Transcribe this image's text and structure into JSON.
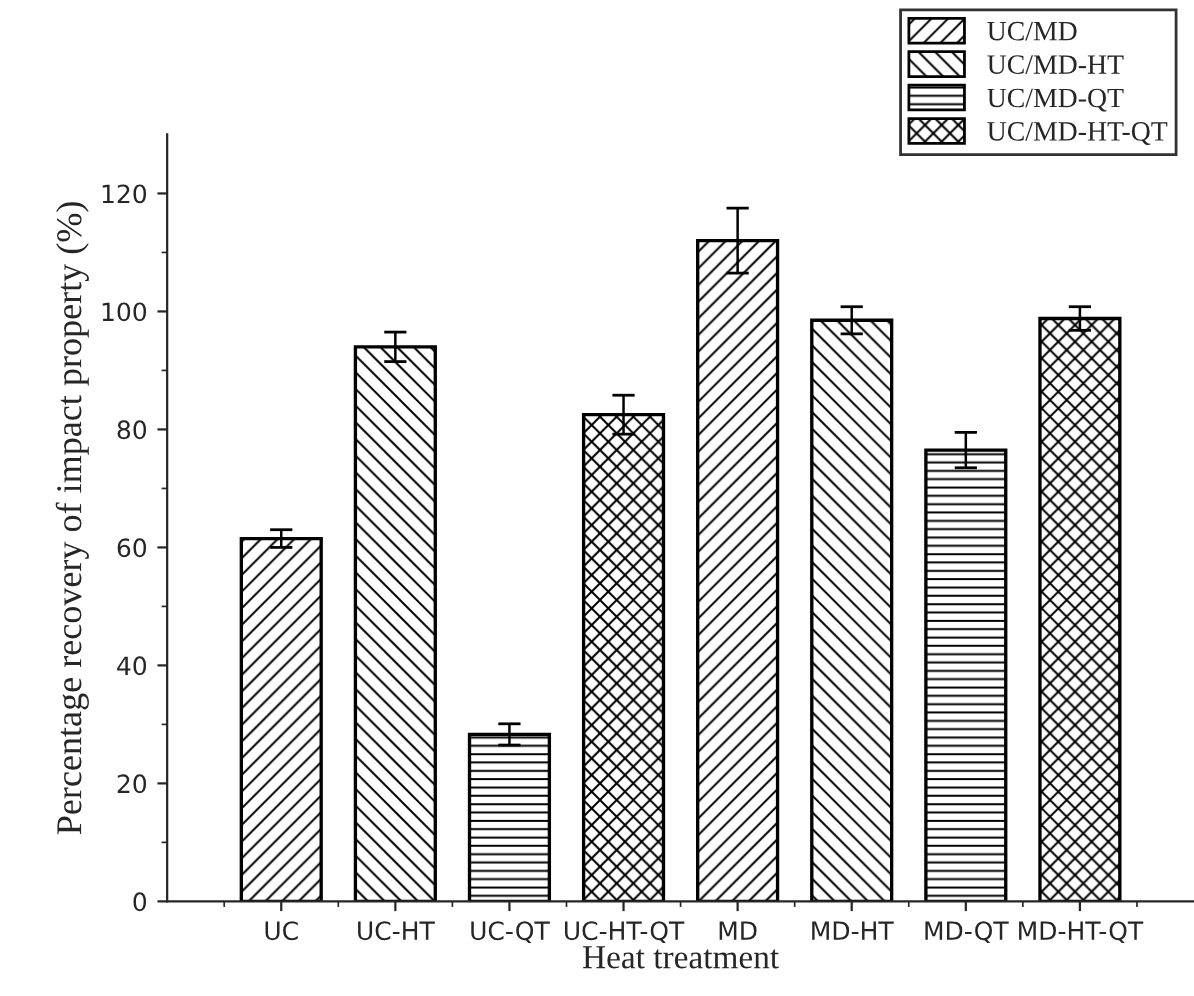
{
  "chart_data": {
    "type": "bar",
    "xlabel": "Heat treatment",
    "ylabel": "Percentage recovery of impact property (%)",
    "categories": [
      "UC",
      "UC-HT",
      "UC-QT",
      "UC-HT-QT",
      "MD",
      "MD-HT",
      "MD-QT",
      "MD-HT-QT"
    ],
    "series": [
      {
        "name": "UC/MD",
        "color": "#000000",
        "values": [
          61.5,
          null,
          null,
          null,
          112,
          null,
          null,
          null
        ],
        "errors": [
          1.5,
          null,
          null,
          null,
          5.5,
          null,
          null,
          null
        ]
      },
      {
        "name": "UC/MD-HT",
        "color": "#000000",
        "values": [
          null,
          94,
          null,
          null,
          null,
          98.5,
          null,
          null
        ],
        "errors": [
          null,
          2.5,
          null,
          null,
          null,
          2.3,
          null,
          null
        ]
      },
      {
        "name": "UC/MD-QT",
        "color": "#000000",
        "values": [
          null,
          null,
          28.3,
          null,
          null,
          null,
          76.5,
          null
        ],
        "errors": [
          null,
          null,
          1.8,
          null,
          null,
          null,
          3,
          null
        ]
      },
      {
        "name": "UC/MD-HT-QT",
        "color": "#000000",
        "values": [
          null,
          null,
          null,
          82.5,
          null,
          null,
          null,
          98.8
        ],
        "errors": [
          null,
          null,
          null,
          3.3,
          null,
          null,
          null,
          2
        ]
      }
    ],
    "ylim": [
      0,
      130
    ],
    "yticks": [
      0,
      20,
      40,
      60,
      80,
      100,
      120
    ],
    "grid": false,
    "legend": "top right"
  }
}
